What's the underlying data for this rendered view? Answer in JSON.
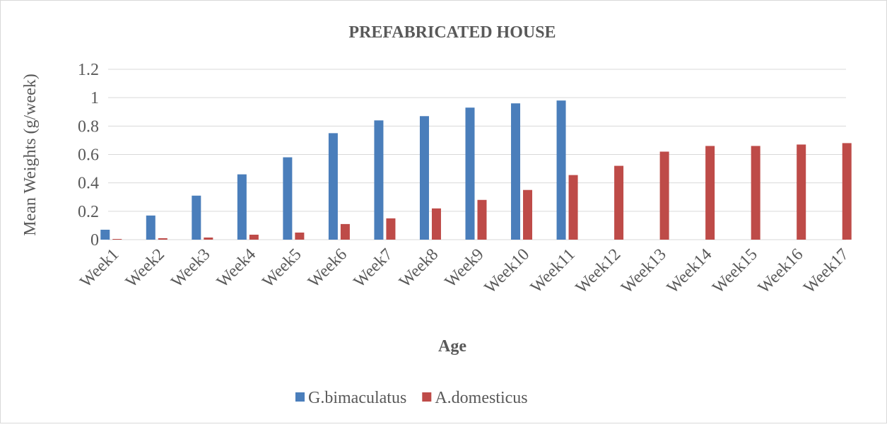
{
  "chart_data": {
    "type": "bar",
    "title": "PREFABRICATED HOUSE",
    "x_label": "Age",
    "y_label": "Mean Weights (g/week)",
    "categories": [
      "Week1",
      "Week2",
      "Week3",
      "Week4",
      "Week5",
      "Week6",
      "Week7",
      "Week8",
      "Week9",
      "Week10",
      "Week11",
      "Week12",
      "Week13",
      "Week14",
      "Week15",
      "Week16",
      "Week17"
    ],
    "series": [
      {
        "name": "G.bimaculatus",
        "color": "#4a7ebb",
        "values": [
          0.07,
          0.17,
          0.31,
          0.46,
          0.58,
          0.75,
          0.84,
          0.87,
          0.93,
          0.96,
          0.98,
          null,
          null,
          null,
          null,
          null,
          null
        ]
      },
      {
        "name": "A.domesticus",
        "color": "#be4b48",
        "values": [
          0.005,
          0.01,
          0.015,
          0.035,
          0.05,
          0.11,
          0.15,
          0.22,
          0.28,
          0.35,
          0.455,
          0.52,
          0.62,
          0.66,
          0.66,
          0.67,
          0.68
        ]
      }
    ],
    "ylim": [
      0,
      1.2
    ],
    "yticks": [
      0,
      0.2,
      0.4,
      0.6,
      0.8,
      1,
      1.2
    ],
    "grid": true,
    "legend": "bottom"
  }
}
